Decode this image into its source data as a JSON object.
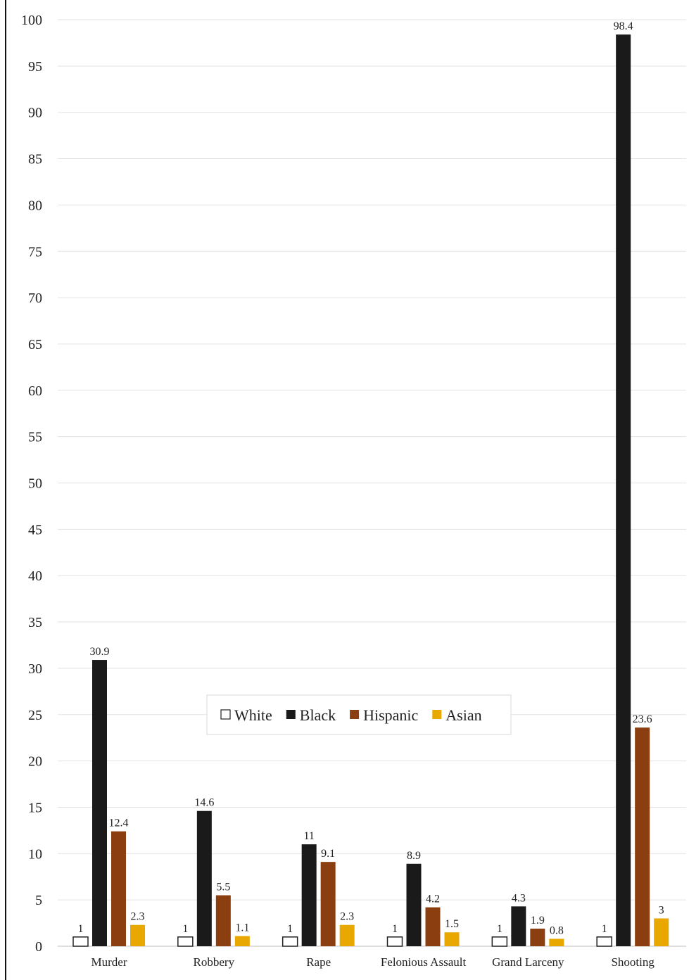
{
  "chart_data": {
    "type": "bar",
    "categories": [
      "Murder",
      "Robbery",
      "Rape",
      "Felonious Assault",
      "Grand Larceny",
      "Shooting"
    ],
    "series": [
      {
        "name": "White",
        "color": "#ffffff",
        "values": [
          1,
          1,
          1,
          1,
          1,
          1
        ]
      },
      {
        "name": "Black",
        "color": "#1a1a1a",
        "values": [
          30.9,
          14.6,
          11,
          8.9,
          4.3,
          98.4
        ]
      },
      {
        "name": "Hispanic",
        "color": "#8b3e0f",
        "values": [
          12.4,
          5.5,
          9.1,
          4.2,
          1.9,
          23.6
        ]
      },
      {
        "name": "Asian",
        "color": "#e8a800",
        "values": [
          2.3,
          1.1,
          2.3,
          1.5,
          0.8,
          3
        ]
      }
    ],
    "ylim": [
      0,
      100
    ],
    "yticks": [
      0,
      5,
      10,
      15,
      20,
      25,
      30,
      35,
      40,
      45,
      50,
      55,
      60,
      65,
      70,
      75,
      80,
      85,
      90,
      95,
      100
    ],
    "grid": true,
    "legend_position": "center"
  }
}
